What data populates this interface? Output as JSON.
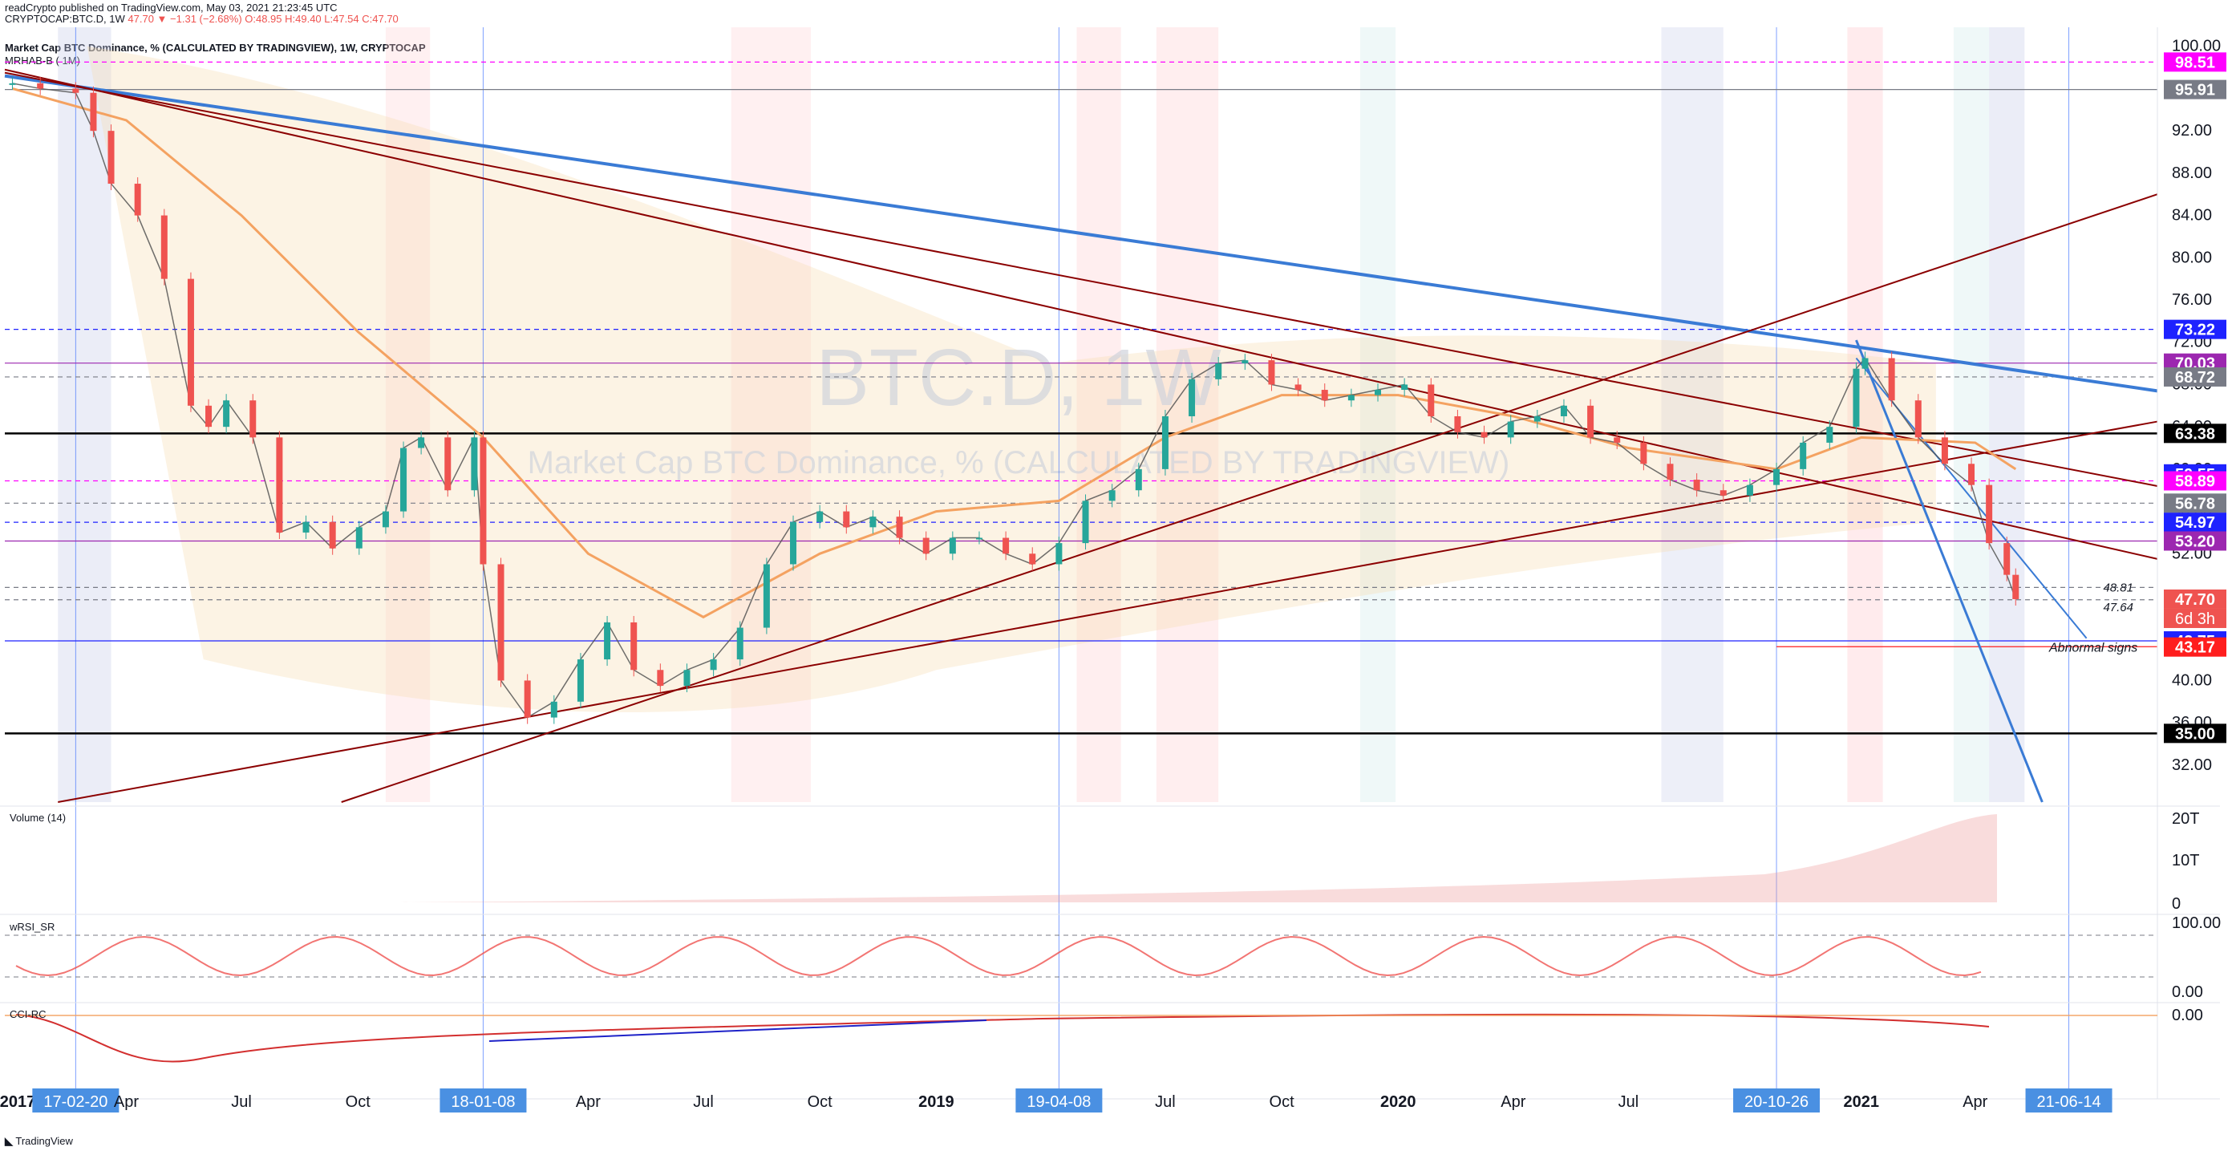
{
  "header": {
    "publisher_line": "readCrypto published on TradingView.com, May 03, 2021 21:23:45 UTC",
    "symbol_line": "CRYPTOCAP:BTC.D, 1W",
    "ohlc_line": "47.70 ▼ −1.31 (−2.68%) O:48.95 H:49.40 L:47.54 C:47.70",
    "study_title": "Market Cap BTC Dominance, % (CALCULATED BY TRADINGVIEW), 1W, CRYPTOCAP",
    "study_sub": "MRHAB-B ( 1M)"
  },
  "watermark": {
    "symbol": "BTC.D, 1W",
    "description": "Market Cap BTC Dominance, % (CALCULATED BY TRADINGVIEW)"
  },
  "panes": {
    "volume_label": "Volume (14)",
    "wrsi_label": "wRSI_SR",
    "cci_label": "CCI-RC"
  },
  "colors": {
    "up": "#26a69a",
    "down": "#ef5350",
    "blue_line": "#3a7bd5",
    "dark_red": "#8b0000",
    "magenta": "#ff00ff",
    "black_line": "#000000"
  },
  "annotations": {
    "abnormal_signs": "Abnormal signs",
    "level_48_81": "48.81",
    "level_47_64": "47.64"
  },
  "footer": {
    "brand": "TradingView"
  },
  "chart_data": {
    "type": "line",
    "title": "Market Cap BTC Dominance, % (CALCULATED BY TRADINGVIEW), 1W, CRYPTOCAP",
    "xlabel": "",
    "ylabel": "",
    "ylim": [
      28.5,
      101.8
    ],
    "x_ticks": [
      "2017",
      "17-02-20",
      "Apr",
      "Jul",
      "Oct",
      "18-01-08",
      "Apr",
      "Jul",
      "Oct",
      "2019",
      "19-04-08",
      "Jul",
      "Oct",
      "2020",
      "Apr",
      "Jul",
      "20-10-26",
      "2021",
      "Apr",
      "21-06-14"
    ],
    "x_tick_dates": [
      "2017-01-01",
      "2017-02-20",
      "2017-04-01",
      "2017-07-01",
      "2017-10-01",
      "2018-01-08",
      "2018-04-01",
      "2018-07-01",
      "2018-10-01",
      "2019-01-01",
      "2019-04-08",
      "2019-07-01",
      "2019-10-01",
      "2020-01-01",
      "2020-04-01",
      "2020-07-01",
      "2020-10-26",
      "2021-01-01",
      "2021-04-01",
      "2021-06-14"
    ],
    "highlighted_x_ticks": [
      "17-02-20",
      "18-01-08",
      "19-04-08",
      "20-10-26",
      "21-06-14"
    ],
    "y_ticks": [
      100.0,
      96.0,
      92.0,
      88.0,
      84.0,
      80.0,
      76.0,
      72.0,
      68.0,
      64.0,
      60.0,
      56.0,
      52.0,
      48.0,
      44.0,
      40.0,
      36.0,
      32.0
    ],
    "y_tick_labels": [
      "100.00",
      "96.00",
      "92.00",
      "88.00",
      "84.00",
      "80.00",
      "76.00",
      "72.00",
      "68.00",
      "64.00",
      "60.00",
      "56.00",
      "52.00",
      "48.00",
      "44.00",
      "40.00",
      "36.00",
      "32.00"
    ],
    "price_labels": [
      {
        "value": 98.51,
        "label": "98.51",
        "color": "#ff00ff"
      },
      {
        "value": 95.91,
        "label": "95.91",
        "color": "#787b86"
      },
      {
        "value": 73.22,
        "label": "73.22",
        "color": "#1e22ff"
      },
      {
        "value": 70.03,
        "label": "70.03",
        "color": "#9c27b0"
      },
      {
        "value": 68.72,
        "label": "68.72",
        "color": "#787b86"
      },
      {
        "value": 63.38,
        "label": "63.38",
        "color": "#000000"
      },
      {
        "value": 59.55,
        "label": "59.55",
        "color": "#1e22ff"
      },
      {
        "value": 58.89,
        "label": "58.89",
        "color": "#ff00ff"
      },
      {
        "value": 56.78,
        "label": "56.78",
        "color": "#787b86"
      },
      {
        "value": 54.97,
        "label": "54.97",
        "color": "#1e22ff"
      },
      {
        "value": 53.2,
        "label": "53.20",
        "color": "#9c27b0"
      },
      {
        "value": 47.7,
        "label": "47.70",
        "color": "#ef5350"
      },
      {
        "value": 43.75,
        "label": "43.75",
        "color": "#1e22ff"
      },
      {
        "value": 43.17,
        "label": "43.17",
        "color": "#ff1e1e"
      },
      {
        "value": 35.0,
        "label": "35.00",
        "color": "#000000"
      }
    ],
    "countdown_label": "6d 3h",
    "horizontal_levels": [
      {
        "value": 98.51,
        "style": "dash",
        "color": "#ff00ff"
      },
      {
        "value": 95.91,
        "style": "solid",
        "color": "#787b86"
      },
      {
        "value": 73.22,
        "style": "dash",
        "color": "#1e22ff"
      },
      {
        "value": 70.03,
        "style": "solid",
        "color": "#9c27b0"
      },
      {
        "value": 68.72,
        "style": "dash",
        "color": "#787b86"
      },
      {
        "value": 63.38,
        "style": "solid",
        "color": "#000000"
      },
      {
        "value": 58.89,
        "style": "dash",
        "color": "#ff00ff"
      },
      {
        "value": 56.78,
        "style": "dash",
        "color": "#787b86"
      },
      {
        "value": 54.97,
        "style": "dash",
        "color": "#1e22ff"
      },
      {
        "value": 53.2,
        "style": "solid",
        "color": "#9c27b0"
      },
      {
        "value": 48.81,
        "style": "dash",
        "color": "#787b86"
      },
      {
        "value": 47.64,
        "style": "dash",
        "color": "#787b86"
      },
      {
        "value": 43.75,
        "style": "solid",
        "color": "#1e22ff"
      },
      {
        "value": 35.0,
        "style": "solid",
        "color": "#000000"
      }
    ],
    "series": [
      {
        "name": "BTC.D",
        "x": [
          "2017-01-01",
          "2017-01-23",
          "2017-02-20",
          "2017-03-06",
          "2017-03-20",
          "2017-04-10",
          "2017-05-01",
          "2017-05-22",
          "2017-06-05",
          "2017-06-19",
          "2017-07-10",
          "2017-07-31",
          "2017-08-21",
          "2017-09-11",
          "2017-10-02",
          "2017-10-23",
          "2017-11-06",
          "2017-11-20",
          "2017-12-11",
          "2018-01-01",
          "2018-01-08",
          "2018-01-22",
          "2018-02-12",
          "2018-03-05",
          "2018-03-26",
          "2018-04-16",
          "2018-05-07",
          "2018-05-28",
          "2018-06-18",
          "2018-07-09",
          "2018-07-30",
          "2018-08-20",
          "2018-09-10",
          "2018-10-01",
          "2018-10-22",
          "2018-11-12",
          "2018-12-03",
          "2018-12-24",
          "2019-01-14",
          "2019-02-04",
          "2019-02-25",
          "2019-03-18",
          "2019-04-08",
          "2019-04-29",
          "2019-05-20",
          "2019-06-10",
          "2019-07-01",
          "2019-07-22",
          "2019-08-12",
          "2019-09-02",
          "2019-09-23",
          "2019-10-14",
          "2019-11-04",
          "2019-11-25",
          "2019-12-16",
          "2020-01-06",
          "2020-01-27",
          "2020-02-17",
          "2020-03-09",
          "2020-03-30",
          "2020-04-20",
          "2020-05-11",
          "2020-06-01",
          "2020-06-22",
          "2020-07-13",
          "2020-08-03",
          "2020-08-24",
          "2020-09-14",
          "2020-10-05",
          "2020-10-26",
          "2020-11-16",
          "2020-12-07",
          "2020-12-28",
          "2021-01-04",
          "2021-01-25",
          "2021-02-15",
          "2021-03-08",
          "2021-03-29",
          "2021-04-12",
          "2021-04-26",
          "2021-05-03"
        ],
        "values": [
          96.5,
          96.0,
          95.6,
          92.0,
          87.0,
          84.0,
          78.0,
          66.0,
          64.0,
          66.5,
          63.0,
          54.0,
          55.0,
          52.5,
          54.5,
          56.0,
          62.0,
          63.0,
          58.0,
          63.0,
          51.0,
          40.0,
          36.5,
          38.0,
          42.0,
          45.5,
          41.0,
          39.5,
          41.0,
          42.0,
          45.0,
          51.0,
          55.0,
          56.0,
          54.5,
          55.5,
          53.5,
          52.0,
          53.5,
          53.5,
          52.0,
          51.0,
          53.0,
          57.0,
          58.0,
          60.0,
          65.0,
          68.5,
          70.0,
          70.3,
          68.0,
          67.5,
          66.5,
          67.0,
          67.5,
          68.0,
          65.0,
          63.5,
          63.0,
          64.5,
          65.0,
          66.0,
          63.0,
          62.5,
          60.5,
          59.0,
          58.0,
          57.5,
          58.5,
          60.0,
          62.5,
          64.0,
          69.5,
          70.5,
          66.5,
          63.0,
          60.5,
          58.5,
          53.0,
          50.0,
          47.7
        ]
      },
      {
        "name": "MRHAB-B",
        "x": [
          "2017-01-01",
          "2017-04-01",
          "2017-07-01",
          "2017-10-01",
          "2018-01-08",
          "2018-04-01",
          "2018-07-01",
          "2018-10-01",
          "2019-01-01",
          "2019-04-08",
          "2019-07-01",
          "2019-10-01",
          "2020-01-01",
          "2020-04-01",
          "2020-07-01",
          "2020-10-26",
          "2021-01-01",
          "2021-04-01",
          "2021-05-03"
        ],
        "values": [
          96.0,
          93.0,
          84.0,
          73.0,
          63.0,
          52.0,
          46.0,
          52.0,
          56.0,
          57.0,
          63.0,
          67.0,
          67.0,
          65.0,
          62.0,
          60.0,
          63.0,
          62.5,
          60.0
        ]
      }
    ],
    "volume": {
      "label": "Volume (14)",
      "y_ticks": [
        "20T",
        "10T",
        "0"
      ],
      "ylim": [
        0,
        20
      ]
    },
    "wrsi": {
      "label": "wRSI_SR",
      "y_ticks": [
        "100.00",
        "0.00"
      ],
      "ylim": [
        -10,
        110
      ]
    },
    "cci": {
      "label": "CCI-RC",
      "y_ticks": [
        "0.00"
      ]
    }
  }
}
